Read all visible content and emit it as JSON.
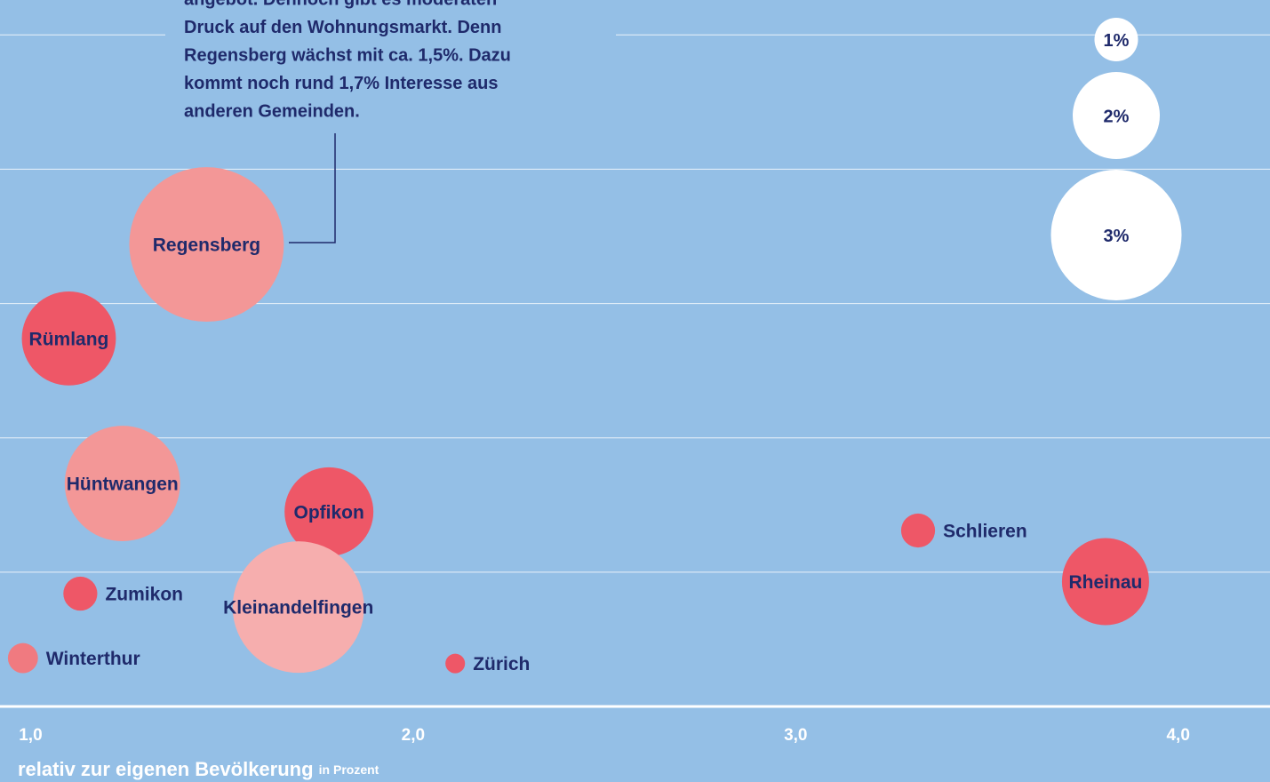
{
  "chart_data": {
    "type": "scatter",
    "x_label": "relativ zur eigenen Bevölkerung",
    "x_label_unit": "in Prozent",
    "annotation": [
      "angebot. Dennoch gibt es moderaten",
      "Druck auf den Wohnungsmarkt. Denn",
      "Regensberg wächst mit ca. 1,5%. Dazu",
      "kommt noch rund 1,7% Interesse aus",
      "anderen Gemeinden."
    ],
    "xlim": [
      0.92,
      4.24
    ],
    "xticks": [
      {
        "value": 1,
        "label": "1,0"
      },
      {
        "value": 2,
        "label": "2,0"
      },
      {
        "value": 3,
        "label": "3,0"
      },
      {
        "value": 4,
        "label": "4,0"
      }
    ],
    "ylim": [
      0,
      5.26
    ],
    "yticks": [
      0,
      1,
      2,
      3,
      4,
      5
    ],
    "grid": true,
    "series": [
      {
        "names": [
          "Regensberg",
          "Rümlang",
          "Hüntwangen",
          "Opfikon",
          "Kleinandelfingen",
          "Zumikon",
          "Winterthur",
          "Zürich",
          "Schlieren",
          "Rheinau"
        ],
        "x": [
          1.46,
          1.1,
          1.24,
          1.78,
          1.7,
          1.13,
          0.98,
          2.11,
          3.32,
          3.81
        ],
        "values": [
          3.44,
          2.74,
          1.66,
          1.45,
          0.74,
          0.84,
          0.36,
          0.32,
          1.31,
          0.93
        ],
        "sizes": [
          3.55,
          2.16,
          2.65,
          2.04,
          3.02,
          0.78,
          0.69,
          0.45,
          0.78,
          2.0
        ],
        "colors": [
          "#f39797",
          "#ee5767",
          "#f39797",
          "#ee5767",
          "#f6aeae",
          "#ee5767",
          "#f07a80",
          "#ee5767",
          "#ee5767",
          "#ee5767"
        ]
      }
    ],
    "size_legend": [
      {
        "value": 1,
        "label": "1%"
      },
      {
        "value": 2,
        "label": "2%"
      },
      {
        "value": 3,
        "label": "3%"
      }
    ]
  }
}
